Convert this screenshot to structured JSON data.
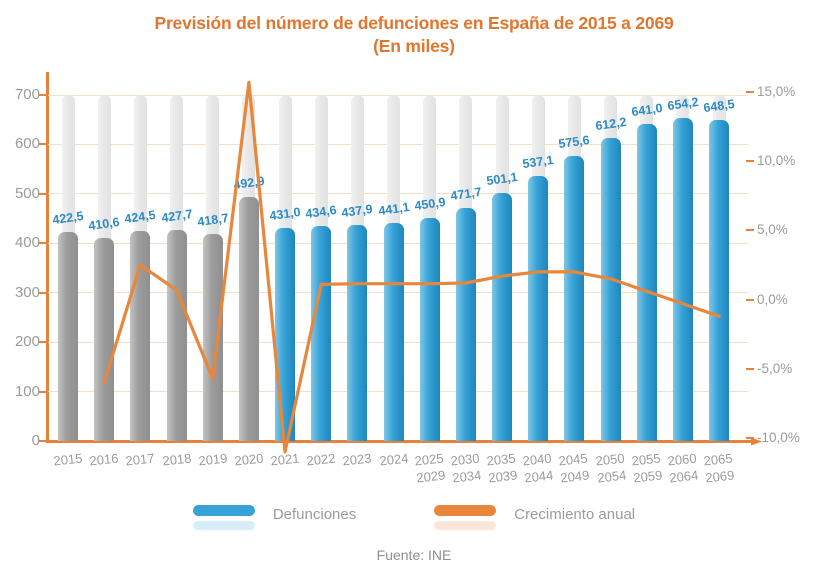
{
  "title": {
    "line1": "Previsión del número de defunciones en España de 2015 a 2069",
    "line2": "(En miles)"
  },
  "source": "Fuente: INE",
  "legend": {
    "items": [
      {
        "label": "Defunciones",
        "color": "#36a2d7"
      },
      {
        "label": "Crecimiento anual",
        "color": "#e8873c"
      }
    ]
  },
  "colors": {
    "title_orange": "#e1762e",
    "axis_orange": "#e8823b",
    "line_orange": "#e8873c",
    "grid_peach": "#f6dfc5",
    "bar_blue": "#36a2d7",
    "bar_gray": "#9c9c9c",
    "bar_background": "#eaeaea",
    "value_label_blue": "#2c8ac6",
    "tick_gray": "#9b9b9b"
  },
  "chart_data": {
    "type": "bar",
    "title": "Previsión del número de defunciones en España de 2015 a 2069",
    "subtitle": "(En miles)",
    "categories": [
      [
        "2015"
      ],
      [
        "2016"
      ],
      [
        "2017"
      ],
      [
        "2018"
      ],
      [
        "2019"
      ],
      [
        "2020"
      ],
      [
        "2021"
      ],
      [
        "2022"
      ],
      [
        "2023"
      ],
      [
        "2024"
      ],
      [
        "2025",
        "2029"
      ],
      [
        "2030",
        "2034"
      ],
      [
        "2035",
        "2039"
      ],
      [
        "2040",
        "2044"
      ],
      [
        "2045",
        "2049"
      ],
      [
        "2050",
        "2054"
      ],
      [
        "2055",
        "2059"
      ],
      [
        "2060",
        "2064"
      ],
      [
        "2065",
        "2069"
      ]
    ],
    "bar_series": {
      "name": "Defunciones",
      "axis": "left",
      "values": [
        422.5,
        410.6,
        424.5,
        427.7,
        418.7,
        492.9,
        431.0,
        434.6,
        437.9,
        441.1,
        450.9,
        471.7,
        501.1,
        537.1,
        575.6,
        612.2,
        641.0,
        654.2,
        648.5
      ],
      "labels": [
        "422,5",
        "410,6",
        "424,5",
        "427,7",
        "418,7",
        "492,9",
        "431,0",
        "434,6",
        "437,9",
        "441,1",
        "450,9",
        "471,7",
        "501,1",
        "537,1",
        "575,6",
        "612,2",
        "641,0",
        "654,2",
        "648,5"
      ],
      "historical_color_until_index": 5
    },
    "line_series": {
      "name": "Crecimiento anual",
      "axis": "right",
      "values_percent": [
        null,
        -6.0,
        2.5,
        0.7,
        -5.7,
        15.7,
        -11.0,
        1.1,
        1.15,
        1.15,
        1.15,
        1.2,
        1.7,
        2.0,
        2.0,
        1.5,
        0.6,
        -0.3,
        -1.2
      ]
    },
    "left_axis": {
      "labels": [
        "700",
        "600",
        "500",
        "400",
        "300",
        "200",
        "100",
        "0"
      ],
      "values": [
        700,
        600,
        500,
        400,
        300,
        200,
        100,
        0
      ],
      "min": 0,
      "max": 700
    },
    "right_axis": {
      "labels": [
        "15,0%",
        "10,0%",
        "5,0%",
        "0,0%",
        "-5,0%",
        "-10,0%"
      ],
      "values": [
        15,
        10,
        5,
        0,
        -5,
        -10
      ],
      "min": -10,
      "max": 15
    },
    "grid": "horizontal",
    "legend_position": "bottom"
  }
}
